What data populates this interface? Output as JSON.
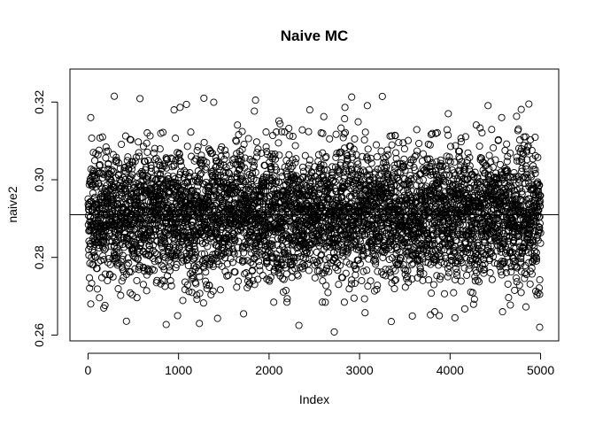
{
  "chart_data": {
    "type": "scatter",
    "title": "Naive MC",
    "xlabel": "Index",
    "ylabel": "naive2",
    "xlim": [
      -200,
      5200
    ],
    "ylim": [
      0.2585,
      0.3285
    ],
    "x_ticks": [
      0,
      1000,
      2000,
      3000,
      4000,
      5000
    ],
    "x_tick_labels": [
      "0",
      "1000",
      "2000",
      "3000",
      "4000",
      "5000"
    ],
    "y_ticks": [
      0.26,
      0.28,
      0.3,
      0.32
    ],
    "y_tick_labels": [
      "0.26",
      "0.28",
      "0.30",
      "0.32"
    ],
    "reference_line": {
      "orientation": "horizontal",
      "y": 0.291
    },
    "marker": "open-circle",
    "grid": false,
    "legend": "none",
    "series": [
      {
        "n": 5000,
        "x_start": 1,
        "x_end": 5000,
        "mean": 0.291,
        "sd": 0.0085,
        "min": 0.2608,
        "max": 0.3215,
        "notable_points": [
          {
            "x": 290,
            "y": 0.3215
          },
          {
            "x": 1280,
            "y": 0.321
          },
          {
            "x": 1850,
            "y": 0.3205
          },
          {
            "x": 4870,
            "y": 0.3195
          },
          {
            "x": 2720,
            "y": 0.2608
          },
          {
            "x": 4990,
            "y": 0.262
          },
          {
            "x": 1230,
            "y": 0.263
          },
          {
            "x": 3350,
            "y": 0.2635
          },
          {
            "x": 2330,
            "y": 0.2625
          },
          {
            "x": 30,
            "y": 0.316
          },
          {
            "x": 950,
            "y": 0.318
          },
          {
            "x": 2450,
            "y": 0.318
          },
          {
            "x": 3980,
            "y": 0.317
          },
          {
            "x": 4570,
            "y": 0.316
          },
          {
            "x": 30,
            "y": 0.268
          },
          {
            "x": 990,
            "y": 0.265
          },
          {
            "x": 3880,
            "y": 0.265
          },
          {
            "x": 4580,
            "y": 0.266
          }
        ]
      }
    ]
  }
}
